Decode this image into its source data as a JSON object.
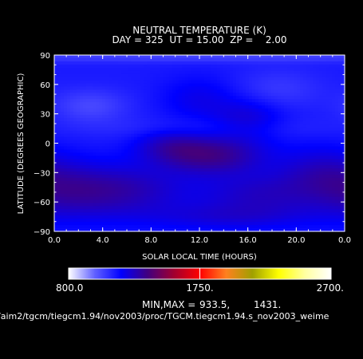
{
  "chart_data": {
    "type": "heatmap",
    "title": "NEUTRAL TEMPERATURE (K)",
    "subtitle": "DAY = 325  UT = 15.00  ZP =    2.00",
    "xlabel": "SOLAR LOCAL TIME (HOURS)",
    "ylabel": "LATITUDE (DEGREES GEOGRAPHIC)",
    "xlim": [
      0,
      24
    ],
    "ylim": [
      -90,
      90
    ],
    "x_ticks": [
      "0.0",
      "4.0",
      "8.0",
      "12.0",
      "16.0",
      "20.0",
      "0.0"
    ],
    "y_ticks": [
      "90",
      "60",
      "30",
      "0",
      "−30",
      "−60",
      "−90"
    ],
    "x_tick_values": [
      0,
      4,
      8,
      12,
      16,
      20,
      24
    ],
    "y_tick_values": [
      90,
      60,
      30,
      0,
      -30,
      -60,
      -90
    ],
    "colorbar": {
      "min": 800,
      "max": 2700,
      "tick_labels": [
        "800.0",
        "1750.",
        "2700."
      ],
      "tick_values": [
        800,
        1750,
        2700
      ],
      "stops": [
        {
          "v": 800,
          "color": "#ffffff"
        },
        {
          "v": 990,
          "color": "#6060ff"
        },
        {
          "v": 1180,
          "color": "#0000ff"
        },
        {
          "v": 1370,
          "color": "#400080"
        },
        {
          "v": 1560,
          "color": "#a00030"
        },
        {
          "v": 1750,
          "color": "#ff0000"
        },
        {
          "v": 1940,
          "color": "#ff8020"
        },
        {
          "v": 2130,
          "color": "#a0a000"
        },
        {
          "v": 2320,
          "color": "#ffff00"
        },
        {
          "v": 2510,
          "color": "#ffffa0"
        },
        {
          "v": 2700,
          "color": "#ffffff"
        }
      ]
    },
    "summary_label": "MIN,MAX =",
    "min_value": "933.5,",
    "max_value": "1431.",
    "file_path": "/aim2/tgcm/tiegcm1.94/nov2003/proc/TGCM.tiegcm1.94.s_nov2003_weime",
    "field_range": {
      "min": 933.5,
      "max": 1431
    },
    "field_blobs": [
      {
        "x": 13.0,
        "y": -12,
        "sx": 3.0,
        "sy": 14,
        "amp": 220
      },
      {
        "x": 9.5,
        "y": -2,
        "sx": 2.0,
        "sy": 12,
        "amp": 110
      },
      {
        "x": 6.0,
        "y": -48,
        "sx": 3.5,
        "sy": 18,
        "amp": 150
      },
      {
        "x": 1.0,
        "y": -50,
        "sx": 3.0,
        "sy": 20,
        "amp": 130
      },
      {
        "x": 17.0,
        "y": -52,
        "sx": 3.5,
        "sy": 16,
        "amp": 130
      },
      {
        "x": 22.0,
        "y": -28,
        "sx": 2.5,
        "sy": 18,
        "amp": 110
      },
      {
        "x": 12.0,
        "y": 45,
        "sx": 2.2,
        "sy": 16,
        "amp": 80
      },
      {
        "x": 16.0,
        "y": 25,
        "sx": 2.0,
        "sy": 14,
        "amp": 110
      },
      {
        "x": 14.0,
        "y": -75,
        "sx": 5.0,
        "sy": 10,
        "amp": 90
      },
      {
        "x": 3.0,
        "y": 38,
        "sx": 2.2,
        "sy": 12,
        "amp": -90
      },
      {
        "x": 18.5,
        "y": 55,
        "sx": 2.5,
        "sy": 14,
        "amp": -60
      },
      {
        "x": 12.0,
        "y": 88,
        "sx": 20.0,
        "sy": 4,
        "amp": -80
      },
      {
        "x": 12.0,
        "y": 15,
        "sx": 7.0,
        "sy": 8,
        "amp": -40
      }
    ]
  }
}
